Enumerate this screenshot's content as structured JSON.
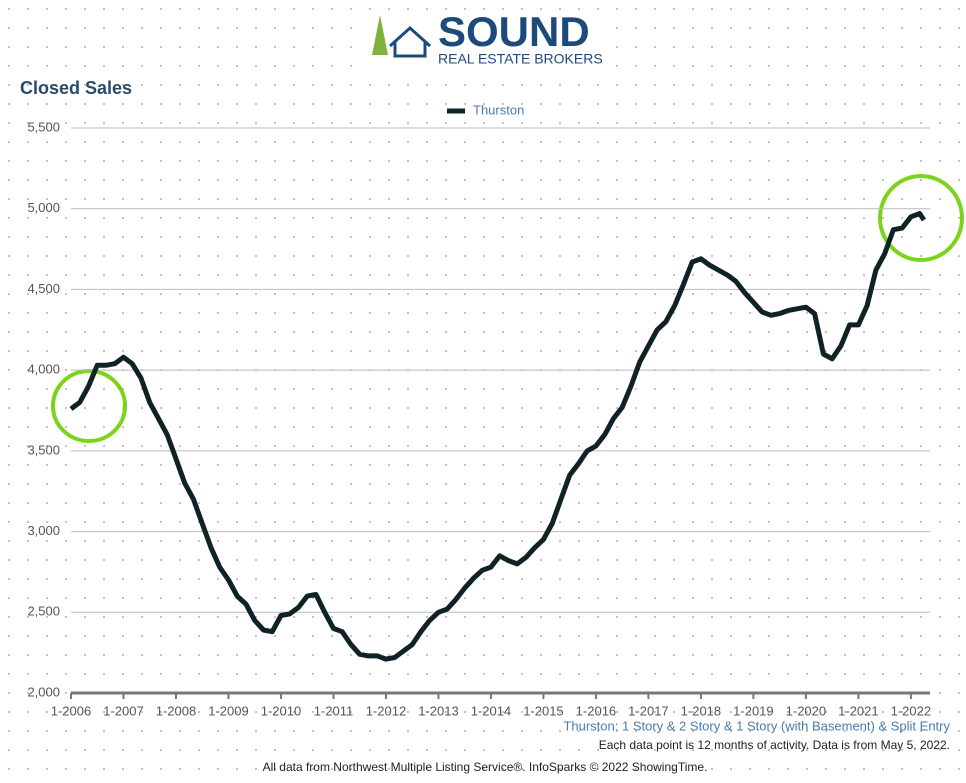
{
  "header": {
    "logo": "SOUND",
    "logo_sub": "REAL ESTATE BROKERS"
  },
  "chart_data": {
    "type": "line",
    "title": "Closed Sales",
    "x": [
      "1-2006",
      "3-2006",
      "5-2006",
      "7-2006",
      "9-2006",
      "11-2006",
      "1-2007",
      "3-2007",
      "5-2007",
      "7-2007",
      "9-2007",
      "11-2007",
      "1-2008",
      "3-2008",
      "5-2008",
      "7-2008",
      "9-2008",
      "11-2008",
      "1-2009",
      "3-2009",
      "5-2009",
      "7-2009",
      "9-2009",
      "11-2009",
      "1-2010",
      "3-2010",
      "5-2010",
      "7-2010",
      "9-2010",
      "11-2010",
      "1-2011",
      "3-2011",
      "5-2011",
      "7-2011",
      "9-2011",
      "11-2011",
      "1-2012",
      "3-2012",
      "5-2012",
      "7-2012",
      "9-2012",
      "11-2012",
      "1-2013",
      "3-2013",
      "5-2013",
      "7-2013",
      "9-2013",
      "11-2013",
      "1-2014",
      "3-2014",
      "5-2014",
      "7-2014",
      "9-2014",
      "11-2014",
      "1-2015",
      "3-2015",
      "5-2015",
      "7-2015",
      "9-2015",
      "11-2015",
      "1-2016",
      "3-2016",
      "5-2016",
      "7-2016",
      "9-2016",
      "11-2016",
      "1-2017",
      "3-2017",
      "5-2017",
      "7-2017",
      "9-2017",
      "11-2017",
      "1-2018",
      "3-2018",
      "5-2018",
      "7-2018",
      "9-2018",
      "11-2018",
      "1-2019",
      "3-2019",
      "5-2019",
      "7-2019",
      "9-2019",
      "11-2019",
      "1-2020",
      "3-2020",
      "5-2020",
      "7-2020",
      "9-2020",
      "11-2020",
      "1-2021",
      "3-2021",
      "5-2021",
      "7-2021",
      "9-2021",
      "11-2021",
      "1-2022",
      "3-2022",
      "4-2022"
    ],
    "series": [
      {
        "name": "Thurston",
        "color": "#0f2326",
        "values": [
          3760,
          3800,
          3900,
          4030,
          4030,
          4040,
          4080,
          4040,
          3950,
          3800,
          3700,
          3600,
          3450,
          3300,
          3200,
          3050,
          2900,
          2780,
          2700,
          2600,
          2550,
          2450,
          2390,
          2380,
          2480,
          2490,
          2530,
          2600,
          2610,
          2500,
          2400,
          2380,
          2300,
          2240,
          2230,
          2230,
          2210,
          2220,
          2260,
          2300,
          2380,
          2450,
          2500,
          2520,
          2580,
          2650,
          2710,
          2760,
          2780,
          2850,
          2820,
          2800,
          2840,
          2900,
          2950,
          3050,
          3200,
          3350,
          3420,
          3500,
          3530,
          3600,
          3700,
          3770,
          3900,
          4050,
          4150,
          4250,
          4300,
          4400,
          4530,
          4670,
          4690,
          4650,
          4620,
          4590,
          4550,
          4480,
          4420,
          4360,
          4340,
          4350,
          4370,
          4380,
          4390,
          4350,
          4100,
          4070,
          4150,
          4280,
          4280,
          4400,
          4620,
          4720,
          4870,
          4880,
          4950,
          4970,
          4930
        ]
      }
    ],
    "xlim": [
      "1-2006",
      "4-2022"
    ],
    "xticks": [
      "1-2006",
      "1-2007",
      "1-2008",
      "1-2009",
      "1-2010",
      "1-2011",
      "1-2012",
      "1-2013",
      "1-2014",
      "1-2015",
      "1-2016",
      "1-2017",
      "1-2018",
      "1-2019",
      "1-2020",
      "1-2021",
      "1-2022"
    ],
    "ylim": [
      2000,
      5500
    ],
    "yticks": [
      {
        "value": 2000,
        "label": "2,000"
      },
      {
        "value": 2500,
        "label": "2,500"
      },
      {
        "value": 3000,
        "label": "3,000"
      },
      {
        "value": 3500,
        "label": "3,500"
      },
      {
        "value": 4000,
        "label": "4,000"
      },
      {
        "value": 4500,
        "label": "4,500"
      },
      {
        "value": 5000,
        "label": "5,000"
      },
      {
        "value": 5500,
        "label": "5,500"
      }
    ],
    "grid": true,
    "legend": "top",
    "subtitle": "Thurston: 1 Story & 2 Story & 1 Story (with Basement) & Split Entry",
    "note": "Each data point is 12 months of activity. Data is from May 5, 2022.",
    "source": "All data from Northwest Multiple Listing Service®. InfoSparks © 2022 ShowingTime."
  }
}
